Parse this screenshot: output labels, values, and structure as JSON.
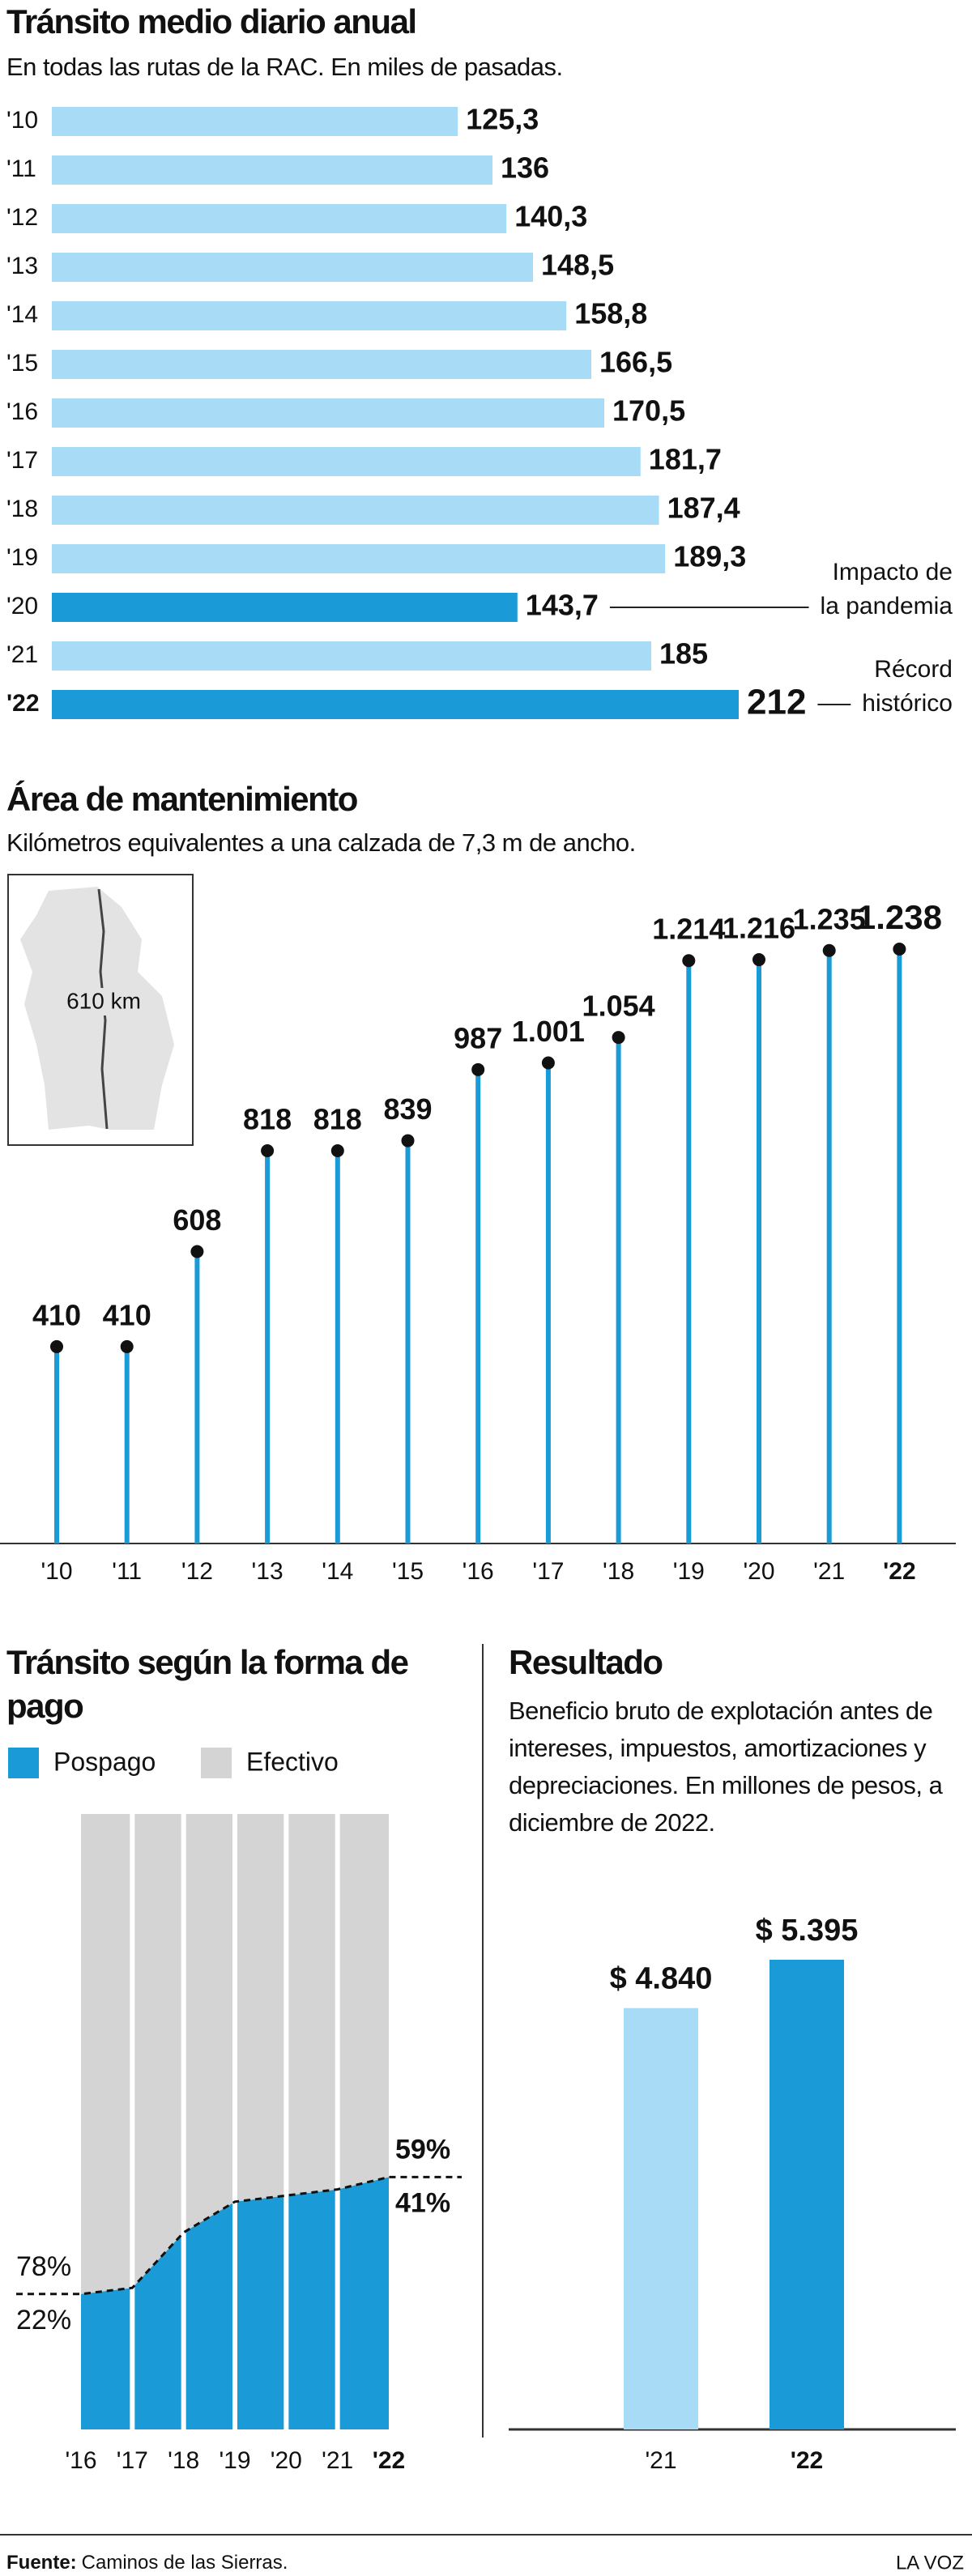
{
  "chart_data": [
    {
      "type": "bar",
      "orientation": "horizontal",
      "title": "Tránsito medio diario anual",
      "subtitle": "En todas las rutas de la RAC. En miles de pasadas.",
      "categories": [
        "'10",
        "'11",
        "'12",
        "'13",
        "'14",
        "'15",
        "'16",
        "'17",
        "'18",
        "'19",
        "'20",
        "'21",
        "'22"
      ],
      "values": [
        125.3,
        136,
        140.3,
        148.5,
        158.8,
        166.5,
        170.5,
        181.7,
        187.4,
        189.3,
        143.7,
        185,
        212
      ],
      "value_labels": [
        "125,3",
        "136",
        "140,3",
        "148,5",
        "158,8",
        "166,5",
        "170,5",
        "181,7",
        "187,4",
        "189,3",
        "143,7",
        "185",
        "212"
      ],
      "colors": [
        "#a8dcf6",
        "#a8dcf6",
        "#a8dcf6",
        "#a8dcf6",
        "#a8dcf6",
        "#a8dcf6",
        "#a8dcf6",
        "#a8dcf6",
        "#a8dcf6",
        "#a8dcf6",
        "#1a9ad6",
        "#a8dcf6",
        "#1a9ad6"
      ],
      "annotations": [
        {
          "category": "'20",
          "text": [
            "Impacto de",
            "la pandemia"
          ]
        },
        {
          "category": "'22",
          "text": [
            "Récord",
            "histórico"
          ]
        }
      ]
    },
    {
      "type": "lollipop",
      "title": "Área de mantenimiento",
      "subtitle": "Kilómetros equivalentes a una calzada de 7,3 m de ancho.",
      "categories": [
        "'10",
        "'11",
        "'12",
        "'13",
        "'14",
        "'15",
        "'16",
        "'17",
        "'18",
        "'19",
        "'20",
        "'21",
        "'22"
      ],
      "values": [
        410,
        410,
        608,
        818,
        818,
        839,
        987,
        1001,
        1054,
        1214,
        1216,
        1235,
        1238
      ],
      "value_labels": [
        "410",
        "410",
        "608",
        "818",
        "818",
        "839",
        "987",
        "1.001",
        "1.054",
        "1.214",
        "1.216",
        "1.235",
        "1.238"
      ],
      "color": "#1a9ad6",
      "inset_label": "610 km"
    },
    {
      "type": "area",
      "stacked": true,
      "title": "Tránsito según la forma de pago",
      "categories": [
        "'16",
        "'17",
        "'18",
        "'19",
        "'20",
        "'21",
        "'22"
      ],
      "series": [
        {
          "name": "Pospago",
          "color": "#1a9ad6",
          "values": [
            22,
            23,
            32,
            37,
            38,
            39,
            41
          ],
          "value_labels": [
            "22%",
            null,
            null,
            null,
            null,
            null,
            "41%"
          ]
        },
        {
          "name": "Efectivo",
          "color": "#d4d4d4",
          "values": [
            78,
            77,
            68,
            63,
            62,
            61,
            59
          ],
          "value_labels": [
            "78%",
            null,
            null,
            null,
            null,
            null,
            "59%"
          ]
        }
      ]
    },
    {
      "type": "bar",
      "orientation": "vertical",
      "title": "Resultado",
      "subtitle": "Beneficio bruto de explotación antes de intereses, impuestos, amortizaciones y depreciaciones. En millones de pesos, a diciembre de 2022.",
      "categories": [
        "'21",
        "'22"
      ],
      "values": [
        4840,
        5395
      ],
      "value_labels": [
        "$ 4.840",
        "$ 5.395"
      ],
      "colors": [
        "#a8dcf6",
        "#1a9ad6"
      ]
    }
  ],
  "footer": {
    "source_label": "Fuente:",
    "source": "Caminos de las Sierras.",
    "brand": "LA VOZ"
  }
}
